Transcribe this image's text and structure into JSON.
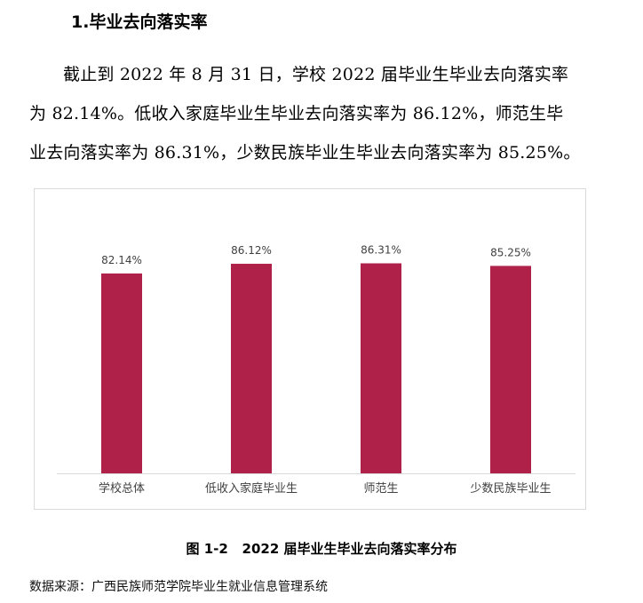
{
  "heading": "1.毕业去向落实率",
  "paragraph_lines": [
    "截止到 2022 年 8 月 31 日，学校 2022 届毕业生毕业去向落实率",
    "为 82.14%。低收入家庭毕业生毕业去向落实率为 86.12%，师范生毕",
    "业去向落实率为 86.31%，少数民族毕业生毕业去向落实率为 85.25%。"
  ],
  "chart_data": {
    "type": "bar",
    "categories": [
      "学校总体",
      "低收入家庭毕业生",
      "师范生",
      "少数民族毕业生"
    ],
    "values": [
      82.14,
      86.12,
      86.31,
      85.25
    ],
    "data_labels": [
      "82.14%",
      "86.12%",
      "86.31%",
      "85.25%"
    ],
    "title": "",
    "xlabel": "",
    "ylabel": "",
    "ylim": [
      0,
      100
    ],
    "grid": false,
    "legend": "none",
    "bar_color": "#b0214a"
  },
  "caption": "图 1-2   2022 届毕业生毕业去向落实率分布",
  "source": "数据来源：广西民族师范学院毕业生就业信息管理系统"
}
